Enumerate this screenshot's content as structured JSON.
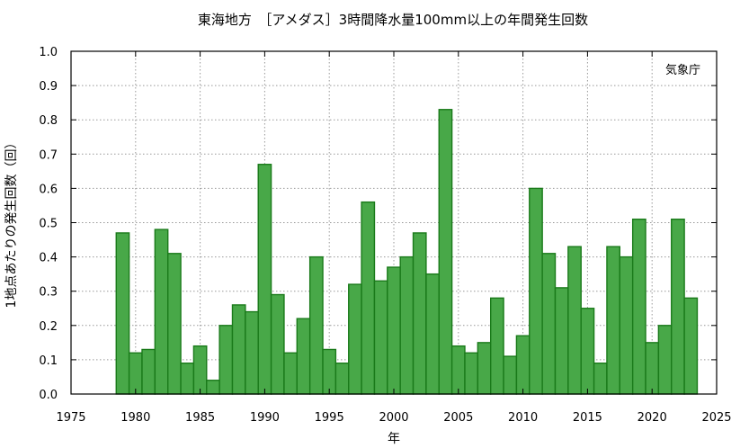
{
  "chart_data": {
    "type": "bar",
    "title": "東海地方　［アメダス］3時間降水量100mm以上の年間発生回数",
    "xlabel": "年",
    "ylabel": "1地点あたりの発生回数（回）",
    "annotation": "気象庁",
    "xlim": [
      1975,
      2025
    ],
    "ylim": [
      0,
      1.0
    ],
    "xticks": [
      1975,
      1980,
      1985,
      1990,
      1995,
      2000,
      2005,
      2010,
      2015,
      2020,
      2025
    ],
    "yticks": [
      "0.0",
      "0.1",
      "0.2",
      "0.3",
      "0.4",
      "0.5",
      "0.6",
      "0.7",
      "0.8",
      "0.9",
      "1.0"
    ],
    "grid": true,
    "bar_color": "#48a848",
    "bar_edge_color": "#1a7a1a",
    "categories": [
      1979,
      1980,
      1981,
      1982,
      1983,
      1984,
      1985,
      1986,
      1987,
      1988,
      1989,
      1990,
      1991,
      1992,
      1993,
      1994,
      1995,
      1996,
      1997,
      1998,
      1999,
      2000,
      2001,
      2002,
      2003,
      2004,
      2005,
      2006,
      2007,
      2008,
      2009,
      2010,
      2011,
      2012,
      2013,
      2014,
      2015,
      2016,
      2017,
      2018,
      2019,
      2020,
      2021,
      2022,
      2023
    ],
    "values": [
      0.47,
      0.12,
      0.13,
      0.48,
      0.41,
      0.09,
      0.14,
      0.04,
      0.2,
      0.26,
      0.24,
      0.67,
      0.29,
      0.12,
      0.22,
      0.4,
      0.13,
      0.09,
      0.32,
      0.56,
      0.33,
      0.37,
      0.4,
      0.47,
      0.35,
      0.83,
      0.14,
      0.12,
      0.15,
      0.28,
      0.11,
      0.17,
      0.6,
      0.41,
      0.31,
      0.43,
      0.25,
      0.09,
      0.43,
      0.4,
      0.51,
      0.15,
      0.2,
      0.51,
      0.28
    ]
  }
}
